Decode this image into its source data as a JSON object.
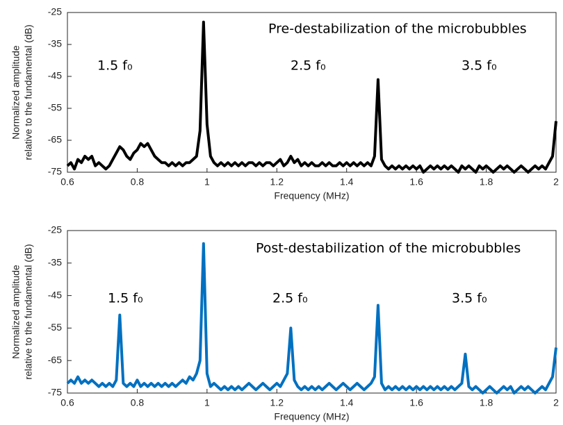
{
  "chart_data": [
    {
      "type": "line",
      "title": "Pre-destabilization of the microbubbles",
      "xlabel": "Frequency (MHz)",
      "ylabel": [
        "Normalized amplitude",
        "relative to the fundamental (dB)"
      ],
      "annotations": [
        "1.5 f₀",
        "2.5 f₀",
        "3.5 f₀"
      ],
      "xlim": [
        0.6,
        2
      ],
      "ylim": [
        -75,
        -25
      ],
      "xticks": [
        0.6,
        0.8,
        1,
        1.2,
        1.4,
        1.6,
        1.8,
        2
      ],
      "yticks": [
        -75,
        -65,
        -55,
        -45,
        -35,
        -25
      ],
      "color": "#000000",
      "x": [
        0.6,
        0.61,
        0.62,
        0.63,
        0.64,
        0.65,
        0.66,
        0.67,
        0.68,
        0.69,
        0.7,
        0.71,
        0.72,
        0.73,
        0.74,
        0.75,
        0.76,
        0.77,
        0.78,
        0.79,
        0.8,
        0.81,
        0.82,
        0.83,
        0.84,
        0.85,
        0.86,
        0.87,
        0.88,
        0.89,
        0.9,
        0.91,
        0.92,
        0.93,
        0.94,
        0.95,
        0.96,
        0.97,
        0.98,
        0.99,
        1,
        1.01,
        1.02,
        1.03,
        1.04,
        1.05,
        1.06,
        1.07,
        1.08,
        1.09,
        1.1,
        1.11,
        1.12,
        1.13,
        1.14,
        1.15,
        1.16,
        1.17,
        1.18,
        1.19,
        1.2,
        1.21,
        1.22,
        1.23,
        1.24,
        1.25,
        1.26,
        1.27,
        1.28,
        1.29,
        1.3,
        1.31,
        1.32,
        1.33,
        1.34,
        1.35,
        1.36,
        1.37,
        1.38,
        1.39,
        1.4,
        1.41,
        1.42,
        1.43,
        1.44,
        1.45,
        1.46,
        1.47,
        1.48,
        1.49,
        1.5,
        1.51,
        1.52,
        1.53,
        1.54,
        1.55,
        1.56,
        1.57,
        1.58,
        1.59,
        1.6,
        1.61,
        1.62,
        1.63,
        1.64,
        1.65,
        1.66,
        1.67,
        1.68,
        1.69,
        1.7,
        1.71,
        1.72,
        1.73,
        1.74,
        1.75,
        1.76,
        1.77,
        1.78,
        1.79,
        1.8,
        1.81,
        1.82,
        1.83,
        1.84,
        1.85,
        1.86,
        1.87,
        1.88,
        1.89,
        1.9,
        1.91,
        1.92,
        1.93,
        1.94,
        1.95,
        1.96,
        1.97,
        1.98,
        1.99,
        2
      ],
      "values": [
        -73,
        -72,
        -74,
        -71,
        -72,
        -70,
        -71,
        -70,
        -73,
        -72,
        -73,
        -74,
        -73,
        -71,
        -69,
        -67,
        -68,
        -70,
        -71,
        -69,
        -68,
        -66,
        -67,
        -66,
        -68,
        -70,
        -71,
        -72,
        -72,
        -73,
        -72,
        -73,
        -72,
        -73,
        -72,
        -72,
        -71,
        -70,
        -62,
        -28,
        -60,
        -70,
        -72,
        -73,
        -72,
        -73,
        -72,
        -73,
        -72,
        -73,
        -72,
        -73,
        -72,
        -72,
        -73,
        -72,
        -73,
        -72,
        -72,
        -73,
        -72,
        -71,
        -73,
        -72,
        -70,
        -72,
        -71,
        -73,
        -72,
        -73,
        -72,
        -73,
        -73,
        -72,
        -73,
        -72,
        -73,
        -73,
        -72,
        -73,
        -72,
        -73,
        -72,
        -73,
        -72,
        -73,
        -72,
        -73,
        -70,
        -46,
        -71,
        -73,
        -74,
        -73,
        -74,
        -73,
        -74,
        -73,
        -74,
        -73,
        -74,
        -73,
        -75,
        -74,
        -73,
        -74,
        -73,
        -74,
        -73,
        -74,
        -73,
        -74,
        -75,
        -73,
        -74,
        -73,
        -74,
        -75,
        -73,
        -74,
        -73,
        -74,
        -75,
        -74,
        -73,
        -74,
        -73,
        -74,
        -75,
        -74,
        -73,
        -74,
        -75,
        -74,
        -73,
        -74,
        -73,
        -74,
        -72,
        -70,
        -59
      ]
    },
    {
      "type": "line",
      "title": "Post-destabilization of the microbubbles",
      "xlabel": "Frequency (MHz)",
      "ylabel": [
        "Normalized amplitude",
        "relative to the fundamental (dB)"
      ],
      "annotations": [
        "1.5 f₀",
        "2.5 f₀",
        "3.5 f₀"
      ],
      "xlim": [
        0.6,
        2
      ],
      "ylim": [
        -75,
        -25
      ],
      "xticks": [
        0.6,
        0.8,
        1,
        1.2,
        1.4,
        1.6,
        1.8,
        2
      ],
      "yticks": [
        -75,
        -65,
        -55,
        -45,
        -35,
        -25
      ],
      "color": "#0070c0",
      "x": [
        0.6,
        0.61,
        0.62,
        0.63,
        0.64,
        0.65,
        0.66,
        0.67,
        0.68,
        0.69,
        0.7,
        0.71,
        0.72,
        0.73,
        0.74,
        0.75,
        0.76,
        0.77,
        0.78,
        0.79,
        0.8,
        0.81,
        0.82,
        0.83,
        0.84,
        0.85,
        0.86,
        0.87,
        0.88,
        0.89,
        0.9,
        0.91,
        0.92,
        0.93,
        0.94,
        0.95,
        0.96,
        0.97,
        0.98,
        0.99,
        1,
        1.01,
        1.02,
        1.03,
        1.04,
        1.05,
        1.06,
        1.07,
        1.08,
        1.09,
        1.1,
        1.11,
        1.12,
        1.13,
        1.14,
        1.15,
        1.16,
        1.17,
        1.18,
        1.19,
        1.2,
        1.21,
        1.22,
        1.23,
        1.24,
        1.25,
        1.26,
        1.27,
        1.28,
        1.29,
        1.3,
        1.31,
        1.32,
        1.33,
        1.34,
        1.35,
        1.36,
        1.37,
        1.38,
        1.39,
        1.4,
        1.41,
        1.42,
        1.43,
        1.44,
        1.45,
        1.46,
        1.47,
        1.48,
        1.49,
        1.5,
        1.51,
        1.52,
        1.53,
        1.54,
        1.55,
        1.56,
        1.57,
        1.58,
        1.59,
        1.6,
        1.61,
        1.62,
        1.63,
        1.64,
        1.65,
        1.66,
        1.67,
        1.68,
        1.69,
        1.7,
        1.71,
        1.72,
        1.73,
        1.74,
        1.75,
        1.76,
        1.77,
        1.78,
        1.79,
        1.8,
        1.81,
        1.82,
        1.83,
        1.84,
        1.85,
        1.86,
        1.87,
        1.88,
        1.89,
        1.9,
        1.91,
        1.92,
        1.93,
        1.94,
        1.95,
        1.96,
        1.97,
        1.98,
        1.99,
        2
      ],
      "values": [
        -72,
        -71,
        -72,
        -70,
        -72,
        -71,
        -72,
        -71,
        -72,
        -73,
        -72,
        -73,
        -72,
        -73,
        -71,
        -51,
        -72,
        -73,
        -72,
        -73,
        -71,
        -73,
        -72,
        -73,
        -72,
        -73,
        -72,
        -73,
        -72,
        -73,
        -72,
        -73,
        -72,
        -71,
        -72,
        -70,
        -71,
        -69,
        -65,
        -29,
        -69,
        -73,
        -72,
        -73,
        -74,
        -73,
        -74,
        -73,
        -74,
        -73,
        -74,
        -73,
        -72,
        -73,
        -74,
        -73,
        -72,
        -73,
        -74,
        -73,
        -72,
        -73,
        -71,
        -69,
        -55,
        -71,
        -73,
        -74,
        -73,
        -74,
        -73,
        -74,
        -73,
        -74,
        -73,
        -72,
        -73,
        -74,
        -73,
        -72,
        -73,
        -74,
        -73,
        -72,
        -73,
        -74,
        -73,
        -72,
        -70,
        -48,
        -72,
        -74,
        -73,
        -74,
        -73,
        -74,
        -73,
        -74,
        -73,
        -74,
        -73,
        -74,
        -73,
        -74,
        -73,
        -74,
        -73,
        -74,
        -73,
        -74,
        -73,
        -74,
        -73,
        -72,
        -63,
        -73,
        -74,
        -73,
        -74,
        -75,
        -74,
        -73,
        -74,
        -75,
        -74,
        -73,
        -74,
        -73,
        -75,
        -74,
        -73,
        -74,
        -73,
        -74,
        -75,
        -74,
        -73,
        -74,
        -72,
        -70,
        -61
      ]
    }
  ]
}
